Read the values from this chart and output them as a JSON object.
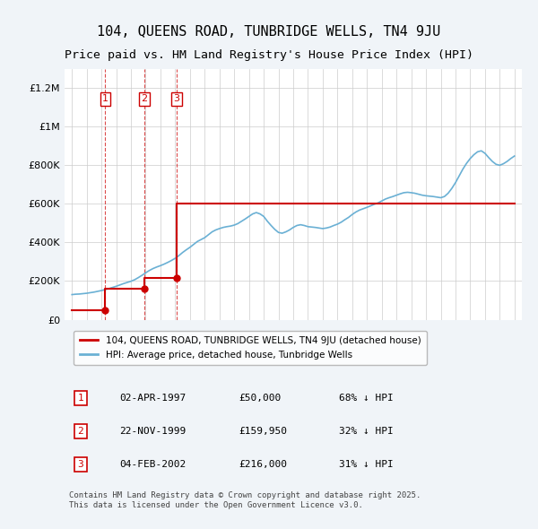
{
  "title": "104, QUEENS ROAD, TUNBRIDGE WELLS, TN4 9JU",
  "subtitle": "Price paid vs. HM Land Registry's House Price Index (HPI)",
  "title_fontsize": 11,
  "subtitle_fontsize": 9.5,
  "ylim": [
    0,
    1300000
  ],
  "yticks": [
    0,
    200000,
    400000,
    600000,
    800000,
    1000000,
    1200000
  ],
  "ytick_labels": [
    "£0",
    "£200K",
    "£400K",
    "£600K",
    "£800K",
    "£1M",
    "£1.2M"
  ],
  "background_color": "#f0f4f8",
  "plot_background": "#ffffff",
  "sales": [
    {
      "date": "1997-04-02",
      "price": 50000,
      "label": "1"
    },
    {
      "date": "1999-11-22",
      "price": 159950,
      "label": "2"
    },
    {
      "date": "2002-02-04",
      "price": 216000,
      "label": "3"
    }
  ],
  "sale_color": "#cc0000",
  "hpi_color": "#6ab0d4",
  "dashed_line_color": "#cc0000",
  "legend_label_red": "104, QUEENS ROAD, TUNBRIDGE WELLS, TN4 9JU (detached house)",
  "legend_label_blue": "HPI: Average price, detached house, Tunbridge Wells",
  "table_data": [
    [
      "1",
      "02-APR-1997",
      "£50,000",
      "68% ↓ HPI"
    ],
    [
      "2",
      "22-NOV-1999",
      "£159,950",
      "32% ↓ HPI"
    ],
    [
      "3",
      "04-FEB-2002",
      "£216,000",
      "31% ↓ HPI"
    ]
  ],
  "footer": "Contains HM Land Registry data © Crown copyright and database right 2025.\nThis data is licensed under the Open Government Licence v3.0.",
  "hpi_data_x": [
    1995.0,
    1995.25,
    1995.5,
    1995.75,
    1996.0,
    1996.25,
    1996.5,
    1996.75,
    1997.0,
    1997.25,
    1997.5,
    1997.75,
    1998.0,
    1998.25,
    1998.5,
    1998.75,
    1999.0,
    1999.25,
    1999.5,
    1999.75,
    2000.0,
    2000.25,
    2000.5,
    2000.75,
    2001.0,
    2001.25,
    2001.5,
    2001.75,
    2002.0,
    2002.25,
    2002.5,
    2002.75,
    2003.0,
    2003.25,
    2003.5,
    2003.75,
    2004.0,
    2004.25,
    2004.5,
    2004.75,
    2005.0,
    2005.25,
    2005.5,
    2005.75,
    2006.0,
    2006.25,
    2006.5,
    2006.75,
    2007.0,
    2007.25,
    2007.5,
    2007.75,
    2008.0,
    2008.25,
    2008.5,
    2008.75,
    2009.0,
    2009.25,
    2009.5,
    2009.75,
    2010.0,
    2010.25,
    2010.5,
    2010.75,
    2011.0,
    2011.25,
    2011.5,
    2011.75,
    2012.0,
    2012.25,
    2012.5,
    2012.75,
    2013.0,
    2013.25,
    2013.5,
    2013.75,
    2014.0,
    2014.25,
    2014.5,
    2014.75,
    2015.0,
    2015.25,
    2015.5,
    2015.75,
    2016.0,
    2016.25,
    2016.5,
    2016.75,
    2017.0,
    2017.25,
    2017.5,
    2017.75,
    2018.0,
    2018.25,
    2018.5,
    2018.75,
    2019.0,
    2019.25,
    2019.5,
    2019.75,
    2020.0,
    2020.25,
    2020.5,
    2020.75,
    2021.0,
    2021.25,
    2021.5,
    2021.75,
    2022.0,
    2022.25,
    2022.5,
    2022.75,
    2023.0,
    2023.25,
    2023.5,
    2023.75,
    2024.0,
    2024.25,
    2024.5,
    2024.75,
    2025.0
  ],
  "hpi_data_y": [
    130000,
    132000,
    133000,
    135000,
    137000,
    140000,
    143000,
    147000,
    151000,
    156000,
    161000,
    167000,
    173000,
    180000,
    187000,
    193000,
    199000,
    207000,
    218000,
    230000,
    243000,
    255000,
    265000,
    273000,
    280000,
    288000,
    297000,
    307000,
    318000,
    332000,
    348000,
    362000,
    375000,
    390000,
    405000,
    415000,
    425000,
    440000,
    455000,
    465000,
    472000,
    478000,
    482000,
    485000,
    490000,
    498000,
    510000,
    522000,
    535000,
    548000,
    555000,
    548000,
    535000,
    510000,
    488000,
    468000,
    452000,
    448000,
    455000,
    465000,
    478000,
    488000,
    492000,
    488000,
    482000,
    480000,
    478000,
    475000,
    472000,
    475000,
    480000,
    488000,
    495000,
    505000,
    518000,
    530000,
    545000,
    558000,
    568000,
    575000,
    582000,
    590000,
    598000,
    605000,
    615000,
    625000,
    632000,
    638000,
    645000,
    652000,
    658000,
    660000,
    658000,
    655000,
    650000,
    645000,
    642000,
    640000,
    638000,
    635000,
    632000,
    638000,
    655000,
    680000,
    710000,
    745000,
    780000,
    810000,
    835000,
    855000,
    870000,
    875000,
    862000,
    840000,
    820000,
    805000,
    800000,
    808000,
    820000,
    835000,
    848000
  ],
  "sale_step_x": [
    1995.0,
    1997.25,
    1997.25,
    1999.9,
    1999.9,
    2002.1,
    2002.1,
    2025.0
  ],
  "sale_step_y": [
    50000,
    50000,
    159950,
    159950,
    216000,
    216000,
    600000,
    600000
  ]
}
